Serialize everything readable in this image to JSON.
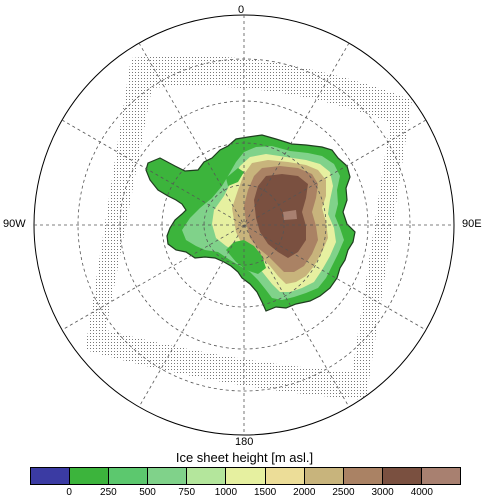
{
  "labels": {
    "top": "0",
    "left": "90W",
    "right": "90E",
    "bottom": "180"
  },
  "colorbar": {
    "title": "Ice sheet height [m asl.]",
    "colors": [
      "#3b3ba3",
      "#3cb43c",
      "#5cc86e",
      "#80d28a",
      "#b4e69c",
      "#e6f0a0",
      "#ecdd98",
      "#c8b47c",
      "#aa8264",
      "#7a5040",
      "#a88070"
    ],
    "ticks": [
      "0",
      "250",
      "500",
      "750",
      "1000",
      "1500",
      "2000",
      "2500",
      "3000",
      "4000"
    ]
  }
}
